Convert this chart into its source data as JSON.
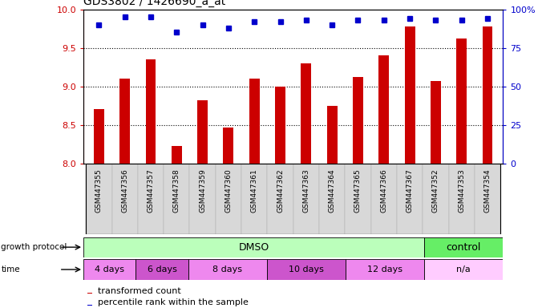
{
  "title": "GDS3802 / 1426690_a_at",
  "samples": [
    "GSM447355",
    "GSM447356",
    "GSM447357",
    "GSM447358",
    "GSM447359",
    "GSM447360",
    "GSM447361",
    "GSM447362",
    "GSM447363",
    "GSM447364",
    "GSM447365",
    "GSM447366",
    "GSM447367",
    "GSM447352",
    "GSM447353",
    "GSM447354"
  ],
  "transformed_count": [
    8.7,
    9.1,
    9.35,
    8.22,
    8.82,
    8.46,
    9.1,
    8.99,
    9.3,
    8.75,
    9.12,
    9.4,
    9.78,
    9.07,
    9.62,
    9.78
  ],
  "percentile_rank": [
    90,
    95,
    95,
    85,
    90,
    88,
    92,
    92,
    93,
    90,
    93,
    93,
    94,
    93,
    93,
    94
  ],
  "ylim_left": [
    8,
    10
  ],
  "ylim_right": [
    0,
    100
  ],
  "yticks_left": [
    8,
    8.5,
    9,
    9.5,
    10
  ],
  "yticks_right": [
    0,
    25,
    50,
    75,
    100
  ],
  "bar_color": "#cc0000",
  "dot_color": "#0000cc",
  "axis_color_left": "#cc0000",
  "axis_color_right": "#0000cc",
  "tick_label_bg": "#d0d0d0",
  "growth_protocol_label": "growth protocol",
  "time_label": "time",
  "dmso_label": "DMSO",
  "control_label": "control",
  "dmso_color": "#bbffbb",
  "control_color": "#66ee66",
  "time_groups": [
    {
      "count": 2,
      "label": "4 days",
      "color": "#ee88ee"
    },
    {
      "count": 2,
      "label": "6 days",
      "color": "#cc55cc"
    },
    {
      "count": 3,
      "label": "8 days",
      "color": "#ee88ee"
    },
    {
      "count": 3,
      "label": "10 days",
      "color": "#cc55cc"
    },
    {
      "count": 3,
      "label": "12 days",
      "color": "#ee88ee"
    },
    {
      "count": 3,
      "label": "n/a",
      "color": "#ffccff"
    }
  ],
  "na_color": "#ffccff",
  "legend_red": "transformed count",
  "legend_blue": "percentile rank within the sample",
  "n_total": 16,
  "n_dmso": 13,
  "n_control": 3
}
